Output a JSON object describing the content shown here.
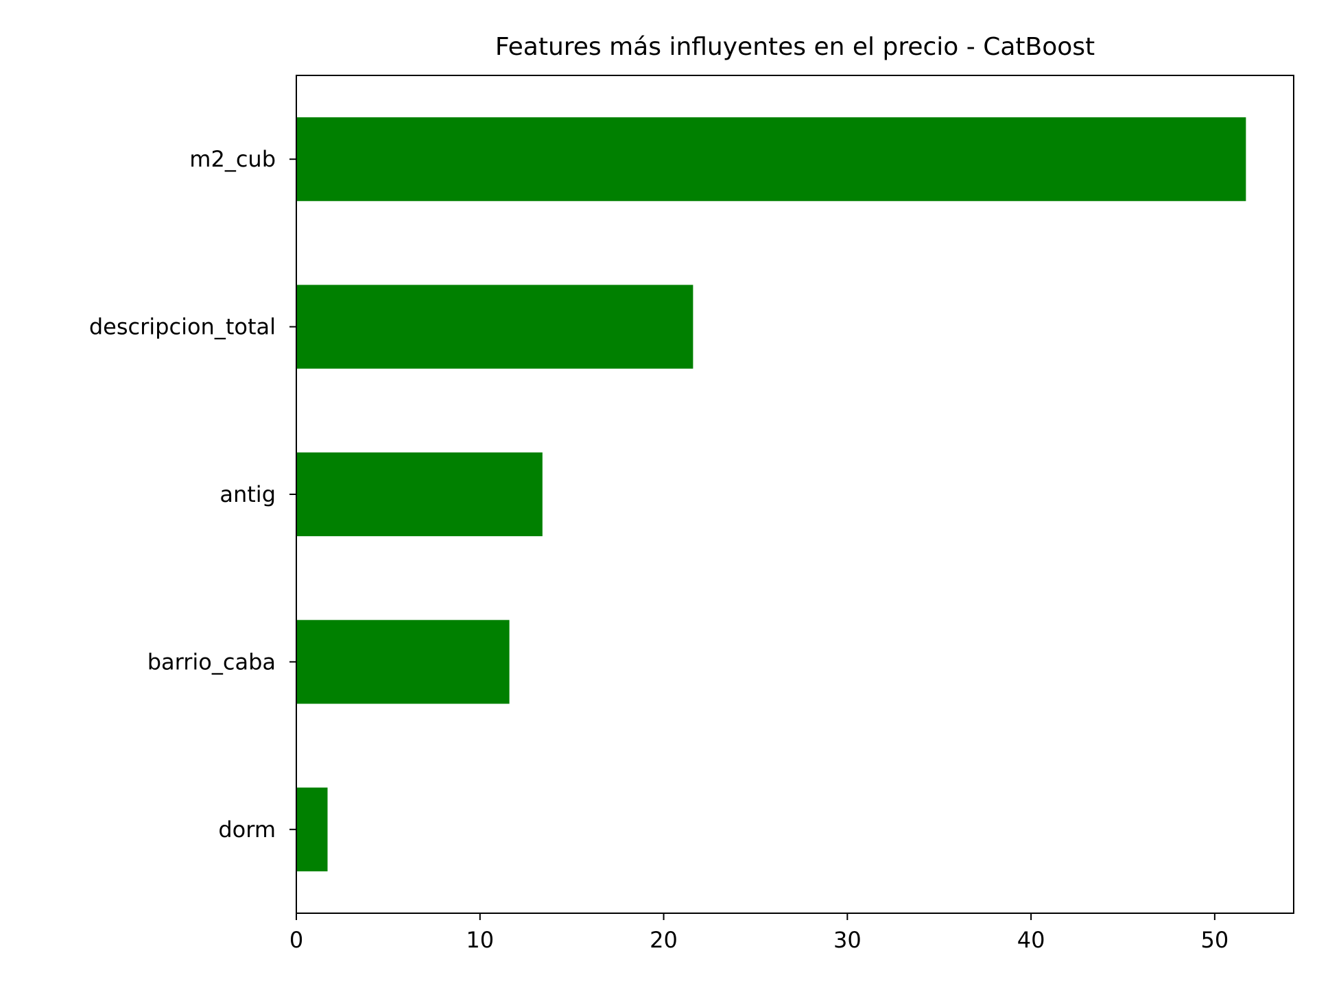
{
  "chart_data": {
    "type": "bar",
    "orientation": "horizontal",
    "title": "Features más influyentes en el precio - CatBoost",
    "xlabel": "",
    "ylabel": "",
    "categories": [
      "m2_cub",
      "descripcion_total",
      "antig",
      "barrio_caba",
      "dorm"
    ],
    "values": [
      51.7,
      21.6,
      13.4,
      11.6,
      1.7
    ],
    "xlim": [
      0,
      54.3
    ],
    "xticks": [
      0,
      10,
      20,
      30,
      40,
      50
    ],
    "grid": false,
    "legend": "none",
    "bar_color": "#008000"
  }
}
